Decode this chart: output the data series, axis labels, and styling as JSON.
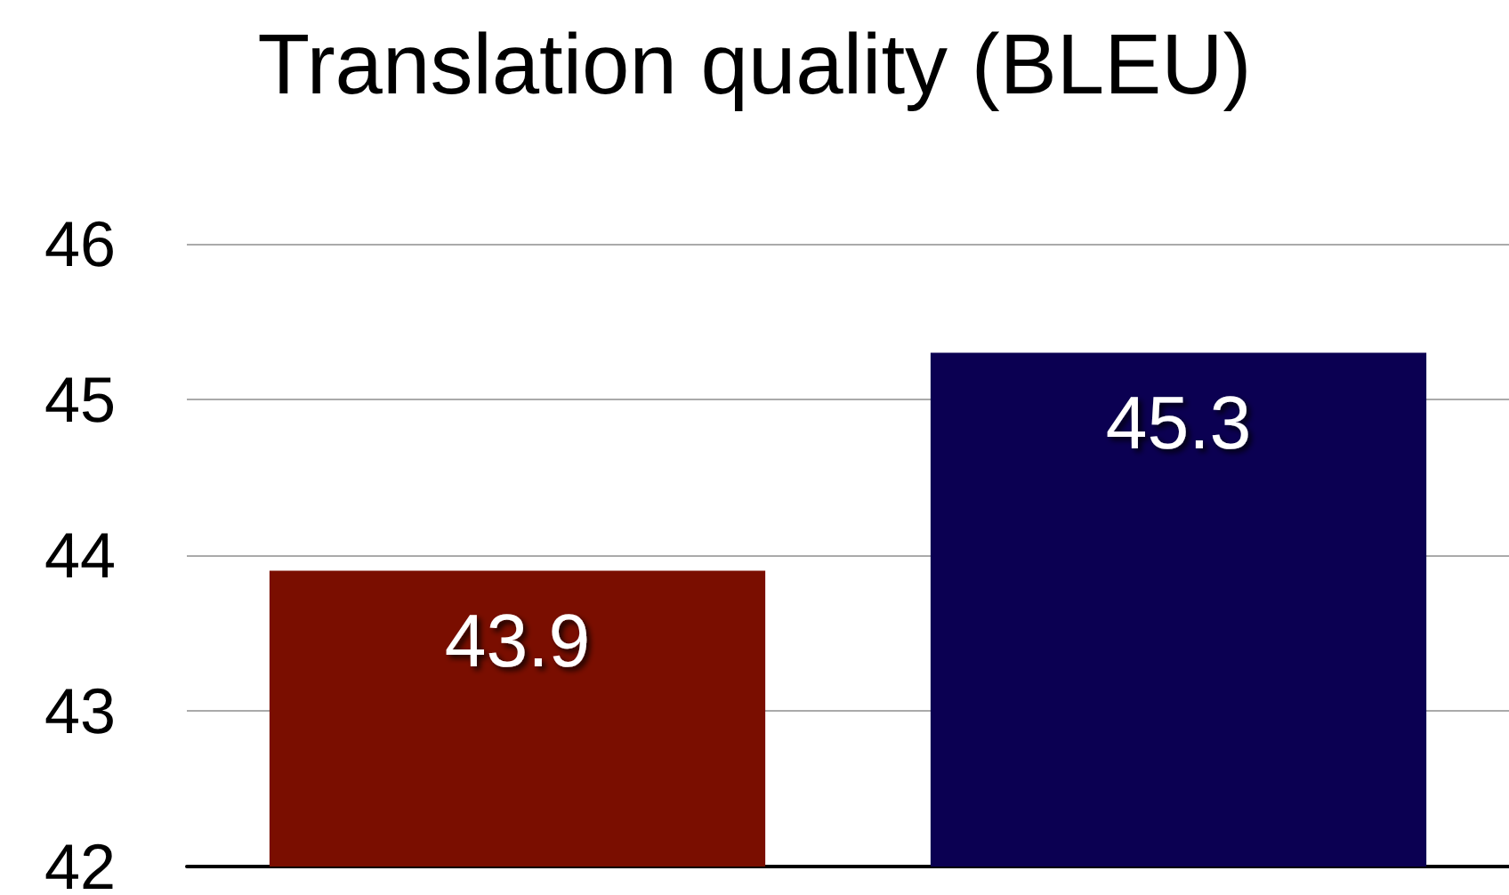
{
  "chart_data": {
    "type": "bar",
    "title": "Translation quality (BLEU)",
    "categories": [
      null,
      null
    ],
    "values": [
      43.9,
      45.3
    ],
    "colors": [
      "#7a0e00",
      "#0b0052"
    ],
    "ylim": [
      42,
      46
    ],
    "yticks": [
      42,
      43,
      44,
      45,
      46
    ],
    "grid": "y",
    "data_labels": true
  }
}
